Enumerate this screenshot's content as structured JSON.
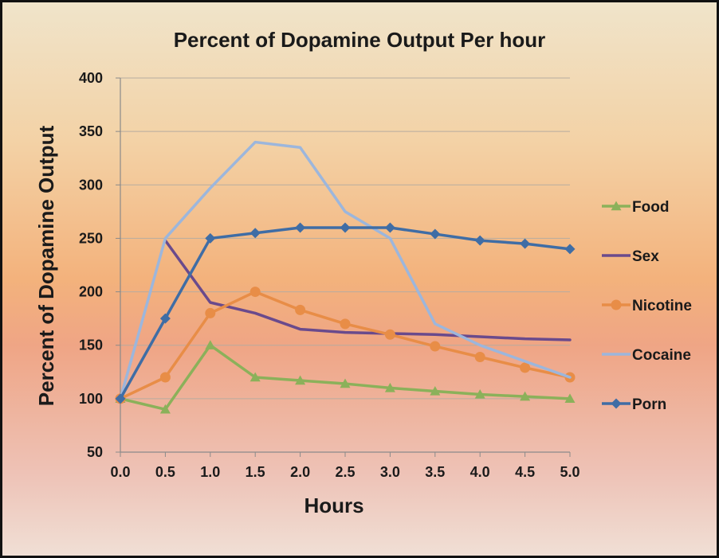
{
  "chart_data": {
    "type": "line",
    "title": "Percent of Dopamine Output Per hour",
    "xlabel": "Hours",
    "ylabel": "Percent of Dopamine Output",
    "x": [
      "0.0",
      "0.5",
      "1.0",
      "1.5",
      "2.0",
      "2.5",
      "3.0",
      "3.5",
      "4.0",
      "4.5",
      "5.0"
    ],
    "y_ticks": [
      "50",
      "100",
      "150",
      "200",
      "250",
      "300",
      "350",
      "400"
    ],
    "ylim": [
      50,
      400
    ],
    "grid": true,
    "legend_position": "right",
    "series": [
      {
        "name": "Food",
        "color": "#8bb15a",
        "marker": "triangle",
        "values": [
          100,
          90,
          150,
          120,
          117,
          114,
          110,
          107,
          104,
          102,
          100
        ]
      },
      {
        "name": "Sex",
        "color": "#6a4a8c",
        "marker": "none",
        "values": [
          null,
          248,
          190,
          180,
          165,
          162,
          161,
          160,
          158,
          156,
          155
        ]
      },
      {
        "name": "Nicotine",
        "color": "#e88d47",
        "marker": "circle",
        "values": [
          100,
          120,
          180,
          200,
          183,
          170,
          160,
          149,
          139,
          129,
          120
        ]
      },
      {
        "name": "Cocaine",
        "color": "#9cb6dc",
        "marker": "none",
        "values": [
          100,
          250,
          297,
          340,
          335,
          275,
          250,
          170,
          150,
          135,
          120
        ]
      },
      {
        "name": "Porn",
        "color": "#3f6da5",
        "marker": "diamond",
        "values": [
          100,
          175,
          250,
          255,
          260,
          260,
          260,
          254,
          248,
          245,
          240
        ]
      }
    ]
  }
}
